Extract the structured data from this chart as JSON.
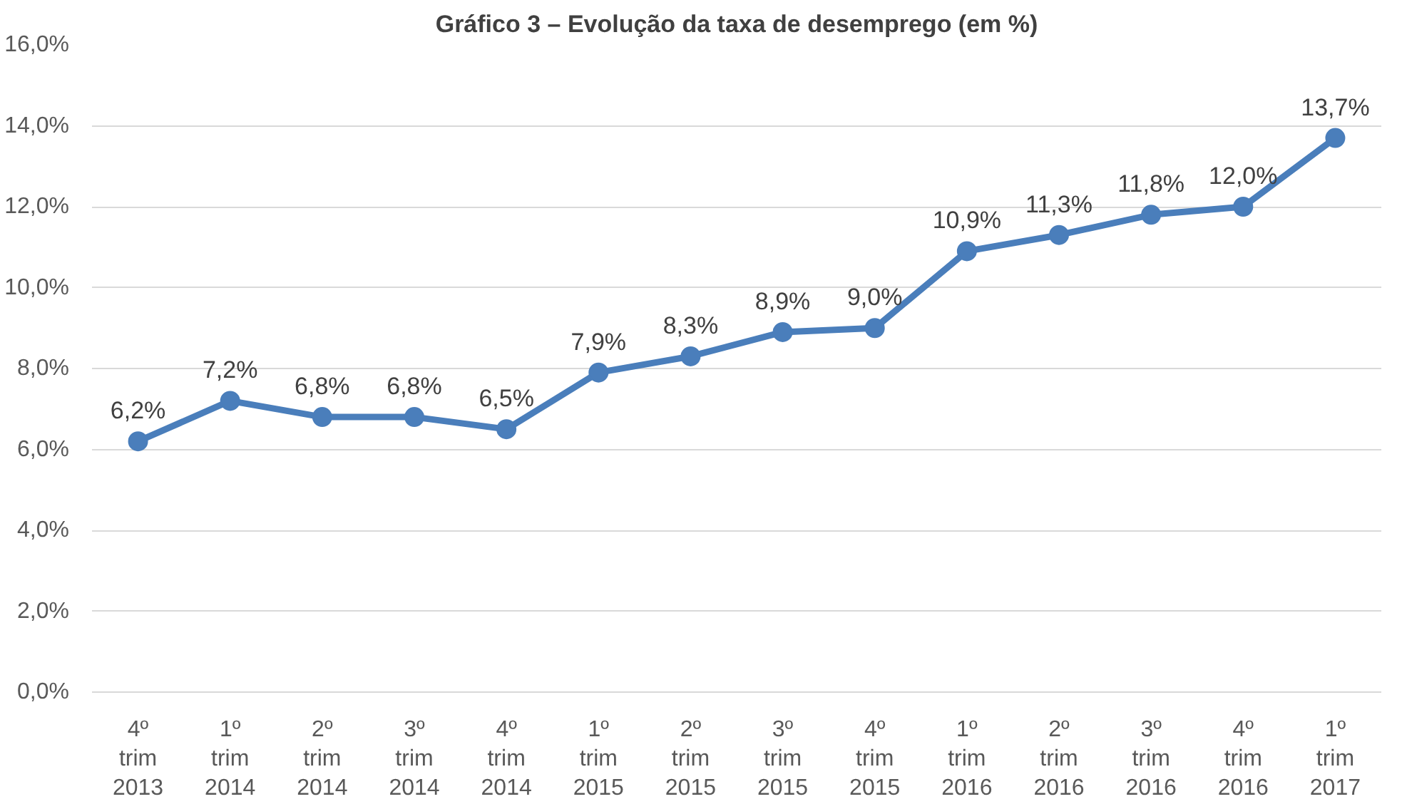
{
  "chart_data": {
    "type": "line",
    "title": "Gráfico 3 – Evolução da taxa de desemprego (em %)",
    "categories": [
      "4º\ntrim\n2013",
      "1º\ntrim\n2014",
      "2º\ntrim\n2014",
      "3º\ntrim\n2014",
      "4º\ntrim\n2014",
      "1º\ntrim\n2015",
      "2º\ntrim\n2015",
      "3º\ntrim\n2015",
      "4º\ntrim\n2015",
      "1º\ntrim\n2016",
      "2º\ntrim\n2016",
      "3º\ntrim\n2016",
      "4º\ntrim\n2016",
      "1º\ntrim\n2017"
    ],
    "series": [
      {
        "color": "#4a7ebb",
        "values": [
          6.2,
          7.2,
          6.8,
          6.8,
          6.5,
          7.9,
          8.3,
          8.9,
          9.0,
          10.9,
          11.3,
          11.8,
          12.0,
          13.7
        ],
        "value_labels": [
          "6,2%",
          "7,2%",
          "6,8%",
          "6,8%",
          "6,5%",
          "7,9%",
          "8,3%",
          "8,9%",
          "9,0%",
          "10,9%",
          "11,3%",
          "11,8%",
          "12,0%",
          "13,7%"
        ]
      }
    ],
    "ylim": [
      0,
      16
    ],
    "yticks": [
      {
        "value": 0,
        "label": "0,0%"
      },
      {
        "value": 2,
        "label": "2,0%"
      },
      {
        "value": 4,
        "label": "4,0%"
      },
      {
        "value": 6,
        "label": "6,0%"
      },
      {
        "value": 8,
        "label": "8,0%"
      },
      {
        "value": 10,
        "label": "10,0%"
      },
      {
        "value": 12,
        "label": "12,0%"
      },
      {
        "value": 14,
        "label": "14,0%"
      },
      {
        "value": 16,
        "label": "16,0%"
      }
    ],
    "grid": "y",
    "marker": "circle",
    "line_style": "solid"
  }
}
